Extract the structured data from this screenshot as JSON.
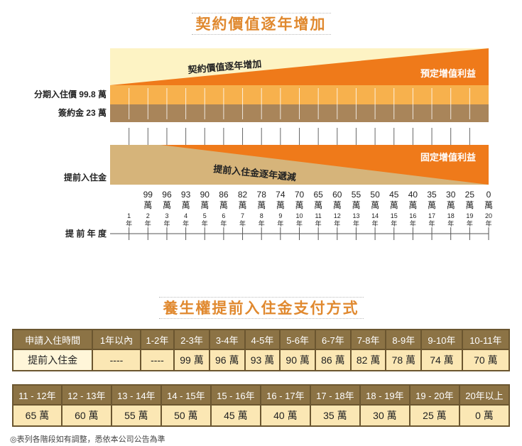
{
  "title_top": "契約價值逐年增加",
  "title_bottom": "養生權提前入住金支付方式",
  "diagram": {
    "upper_label": "契約價值逐年增加",
    "upper_right_label": "預定增值利益",
    "row1_label": "分期入住價 99.8 萬",
    "row2_label": "簽約金 23 萬",
    "lower_label": "提前入住金逐年遞減",
    "lower_right_label": "固定增值利益",
    "lower_left_label": "提前入住金",
    "year_axis_label": "提 前 年 度",
    "amounts": [
      "99",
      "96",
      "93",
      "90",
      "86",
      "82",
      "78",
      "74",
      "70",
      "65",
      "60",
      "55",
      "50",
      "45",
      "40",
      "35",
      "30",
      "25",
      "0"
    ],
    "amount_unit": "萬",
    "years": [
      "1",
      "2",
      "3",
      "4",
      "5",
      "6",
      "7",
      "8",
      "9",
      "10",
      "11",
      "12",
      "13",
      "14",
      "15",
      "16",
      "17",
      "18",
      "19",
      "20"
    ],
    "year_unit": "年",
    "colors": {
      "cream": "#fdf3c4",
      "orange": "#ef7a1a",
      "light_orange": "#f7b14d",
      "brown": "#b08a5d",
      "tan": "#d6b47a"
    }
  },
  "table1": {
    "headers": [
      "申請入住時間",
      "1年以內",
      "1-2年",
      "2-3年",
      "3-4年",
      "4-5年",
      "5-6年",
      "6-7年",
      "7-8年",
      "8-9年",
      "9-10年",
      "10-11年"
    ],
    "values": [
      "提前入住金",
      "----",
      "----",
      "99 萬",
      "96 萬",
      "93 萬",
      "90 萬",
      "86 萬",
      "82 萬",
      "78 萬",
      "74 萬",
      "70 萬"
    ]
  },
  "table2": {
    "headers": [
      "11 - 12年",
      "12 - 13年",
      "13 - 14年",
      "14 - 15年",
      "15 - 16年",
      "16 - 17年",
      "17 - 18年",
      "18 - 19年",
      "19 - 20年",
      "20年以上"
    ],
    "values": [
      "65 萬",
      "60 萬",
      "55 萬",
      "50 萬",
      "45 萬",
      "40 萬",
      "35 萬",
      "30 萬",
      "25 萬",
      "0 萬"
    ]
  },
  "footnote": "◎表列各階段如有調整，悉依本公司公告為準"
}
